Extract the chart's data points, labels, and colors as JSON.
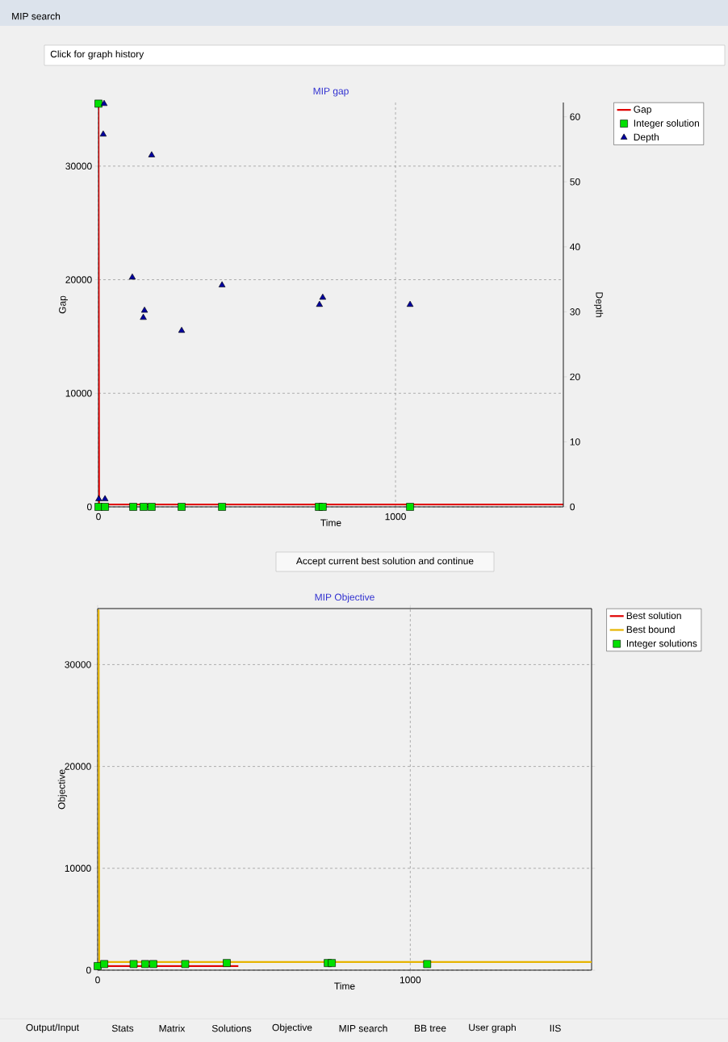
{
  "chart_data": [
    {
      "type": "scatter",
      "title": "MIP gap",
      "xlabel": "Time",
      "ylabel": "Gap",
      "y2label": "Depth",
      "xlim": [
        0,
        1565
      ],
      "ylim": [
        0,
        35600
      ],
      "y2lim": [
        0,
        62.2
      ],
      "xticks": [
        0,
        1000
      ],
      "yticks": [
        0,
        10000,
        20000,
        30000
      ],
      "y2ticks": [
        0,
        10,
        20,
        30,
        40,
        50,
        60
      ],
      "grid": true,
      "legend": "top right",
      "series": [
        {
          "name": "Gap",
          "type": "line",
          "color": "#e00000",
          "marker": "none",
          "x": [
            0,
            2,
            1565
          ],
          "values": [
            35500,
            200,
            200
          ]
        },
        {
          "name": "Integer solution",
          "color": "#00e000",
          "marker": "square",
          "x": [
            0,
            0,
            22,
            117,
            152,
            179,
            280,
            416,
            742,
            755,
            1049
          ],
          "values": [
            35500,
            0,
            0,
            0,
            0,
            0,
            0,
            0,
            0,
            0,
            0
          ]
        },
        {
          "name": "Depth",
          "axis": "y2",
          "color": "#0000a0",
          "marker": "triangle",
          "x": [
            19,
            16,
            179,
            114,
            155,
            151,
            280,
            416,
            744,
            755,
            1049,
            1,
            22
          ],
          "values": [
            62,
            57.3,
            54.1,
            35.3,
            30.2,
            29.1,
            27.1,
            34.1,
            31.1,
            32.2,
            31.1,
            1.2,
            1.2
          ]
        }
      ],
      "annotations": [
        "MIP search",
        "Click for graph history"
      ]
    },
    {
      "type": "line",
      "title": "MIP Objective",
      "xlabel": "Time",
      "ylabel": "Objective",
      "xlim": [
        0,
        1580
      ],
      "ylim": [
        0,
        35500
      ],
      "xticks": [
        0,
        1000
      ],
      "yticks": [
        0,
        10000,
        20000,
        30000
      ],
      "grid": true,
      "legend": "top right",
      "series": [
        {
          "name": "Best solution",
          "color": "#e00000",
          "marker": "none",
          "x": [
            3,
            450
          ],
          "values": [
            400,
            400
          ]
        },
        {
          "name": "Best bound",
          "color": "#e6b400",
          "marker": "none",
          "x": [
            3,
            5,
            1580
          ],
          "values": [
            35400,
            800,
            800
          ]
        },
        {
          "name": "Integer solutions",
          "type": "scatter",
          "color": "#00e000",
          "marker": "square",
          "x": [
            0,
            21,
            115,
            152,
            178,
            280,
            413,
            736,
            749,
            1054
          ],
          "values": [
            400,
            600,
            600,
            600,
            600,
            600,
            700,
            700,
            700,
            600
          ]
        }
      ],
      "annotations": [
        "Accept current best solution and continue",
        "Output/Input",
        "Stats",
        "Matrix",
        "Solutions",
        "Objective",
        "MIP search",
        "BB tree",
        "User graph",
        "IIS"
      ]
    }
  ]
}
